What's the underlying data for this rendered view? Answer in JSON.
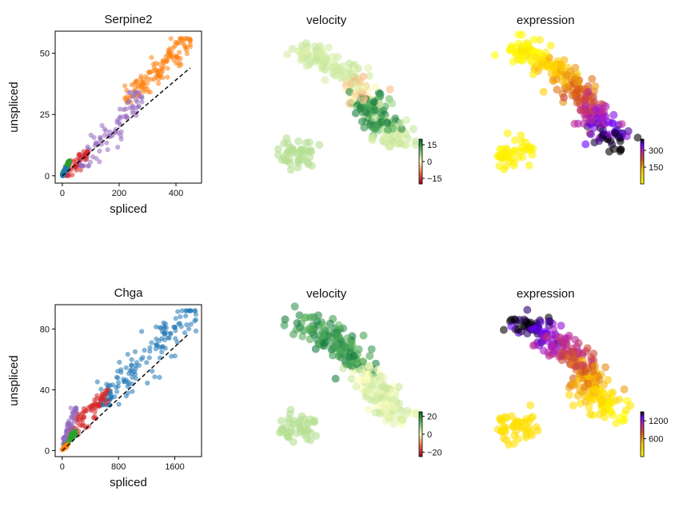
{
  "chart_data": [
    {
      "type": "scatter",
      "title": "Serpine2",
      "xlabel": "spliced",
      "ylabel": "unspliced",
      "xlim": [
        -25,
        490
      ],
      "ylim": [
        -3,
        59
      ],
      "xticks": [
        0,
        200,
        400
      ],
      "yticks": [
        0,
        25,
        50
      ],
      "fit_line": {
        "x": [
          0,
          450
        ],
        "y": [
          0,
          44
        ]
      },
      "clusters": [
        {
          "color": "#ff7f0e",
          "x_range": [
            220,
            450
          ],
          "y_range": [
            30,
            56
          ],
          "n": 130,
          "center": [
            330,
            43
          ]
        },
        {
          "color": "#9467bd",
          "x_range": [
            60,
            280
          ],
          "y_range": [
            4,
            34
          ],
          "n": 90,
          "center": [
            180,
            18
          ]
        },
        {
          "color": "#d62728",
          "x_range": [
            10,
            90
          ],
          "y_range": [
            0,
            10
          ],
          "n": 45,
          "center": [
            45,
            3
          ]
        },
        {
          "color": "#2ca02c",
          "x_range": [
            0,
            25
          ],
          "y_range": [
            0,
            6
          ],
          "n": 60,
          "center": [
            10,
            2
          ]
        },
        {
          "color": "#1f77b4",
          "x_range": [
            0,
            15
          ],
          "y_range": [
            0,
            3
          ],
          "n": 35,
          "center": [
            5,
            1
          ]
        }
      ]
    },
    {
      "type": "scatter",
      "title": "velocity",
      "colormap": "RdYlGn",
      "colorbar_ticks": [
        "15",
        "0",
        "−15"
      ],
      "colorbar_range": [
        -20,
        20
      ],
      "colorbar_tick_values": [
        15,
        0,
        -15
      ]
    },
    {
      "type": "scatter",
      "title": "expression",
      "colormap": "gnuplot_r",
      "colorbar_ticks": [
        "300",
        "150"
      ],
      "colorbar_range": [
        0,
        400
      ],
      "colorbar_tick_values": [
        300,
        150
      ]
    },
    {
      "type": "scatter",
      "title": "Chga",
      "xlabel": "spliced",
      "ylabel": "unspliced",
      "xlim": [
        -100,
        1980
      ],
      "ylim": [
        -4,
        96
      ],
      "xticks": [
        0,
        800,
        1600
      ],
      "yticks": [
        0,
        40,
        80
      ],
      "fit_line": {
        "x": [
          0,
          1780
        ],
        "y": [
          0,
          76
        ]
      },
      "clusters": [
        {
          "color": "#1f77b4",
          "x_range": [
            500,
            1900
          ],
          "y_range": [
            30,
            92
          ],
          "n": 150,
          "center": [
            1150,
            58
          ]
        },
        {
          "color": "#d62728",
          "x_range": [
            100,
            650
          ],
          "y_range": [
            10,
            40
          ],
          "n": 80,
          "center": [
            380,
            27
          ]
        },
        {
          "color": "#9467bd",
          "x_range": [
            10,
            200
          ],
          "y_range": [
            4,
            28
          ],
          "n": 60,
          "center": [
            80,
            15
          ]
        },
        {
          "color": "#2ca02c",
          "x_range": [
            30,
            200
          ],
          "y_range": [
            2,
            13
          ],
          "n": 45,
          "center": [
            110,
            8
          ]
        },
        {
          "color": "#ff7f0e",
          "x_range": [
            0,
            80
          ],
          "y_range": [
            0,
            4
          ],
          "n": 25,
          "center": [
            30,
            1
          ]
        }
      ]
    },
    {
      "type": "scatter",
      "title": "velocity",
      "colormap": "RdYlGn",
      "colorbar_ticks": [
        "20",
        "0",
        "−20"
      ],
      "colorbar_range": [
        -25,
        25
      ],
      "colorbar_tick_values": [
        20,
        0,
        -20
      ]
    },
    {
      "type": "scatter",
      "title": "expression",
      "colormap": "gnuplot_r",
      "colorbar_ticks": [
        "1200",
        "600"
      ],
      "colorbar_range": [
        0,
        1500
      ],
      "colorbar_tick_values": [
        1200,
        600
      ]
    }
  ]
}
